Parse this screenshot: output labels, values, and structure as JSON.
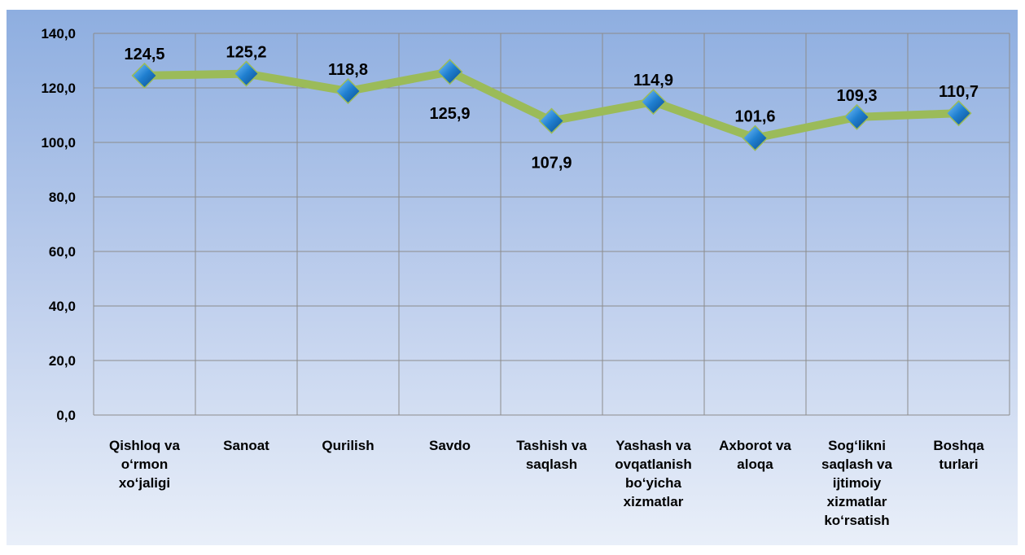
{
  "chart_data": {
    "type": "line",
    "categories": [
      "Qishloq va o‘rmon xo‘jaligi",
      "Sanoat",
      "Qurilish",
      "Savdo",
      "Tashish va saqlash",
      "Yashash va ovqatlanish bo‘yicha xizmatlar",
      "Axborot va aloqa",
      "Sog‘likni saqlash va ijtimoiy xizmatlar ko‘rsatish",
      "Boshqa turlari"
    ],
    "series": [
      {
        "color": "#9bbb59",
        "marker_color": "#1f7fd0",
        "values": [
          124.5,
          125.2,
          118.8,
          125.9,
          107.9,
          114.9,
          101.6,
          109.3,
          110.7
        ],
        "value_labels": [
          "124,5",
          "125,2",
          "118,8",
          "125,9",
          "107,9",
          "114,9",
          "101,6",
          "109,3",
          "110,7"
        ]
      }
    ],
    "ylim": [
      0,
      140
    ],
    "yticks": [
      {
        "value": 0,
        "label": "0,0"
      },
      {
        "value": 20,
        "label": "20,0"
      },
      {
        "value": 40,
        "label": "40,0"
      },
      {
        "value": 60,
        "label": "60,0"
      },
      {
        "value": 80,
        "label": "80,0"
      },
      {
        "value": 100,
        "label": "100,0"
      },
      {
        "value": 120,
        "label": "120,0"
      },
      {
        "value": 140,
        "label": "140,0"
      }
    ],
    "grid": true
  }
}
